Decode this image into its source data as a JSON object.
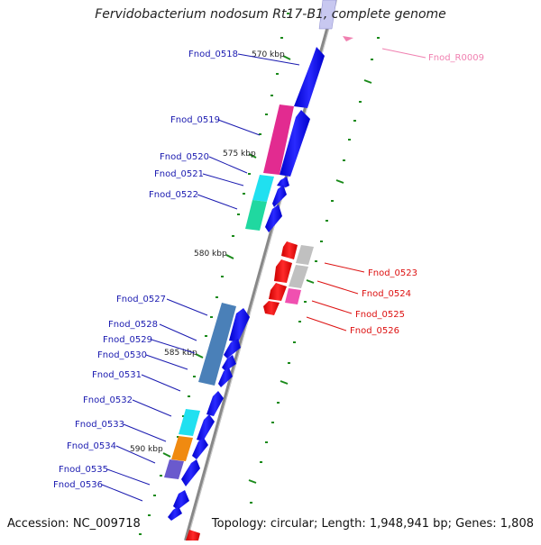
{
  "title": "Fervidobacterium nodosum Rt17-B1, complete genome",
  "footer": {
    "accession": "Accession: NC_009718",
    "summary": "Topology: circular; Length: 1,948,941 bp; Genes: 1,808"
  },
  "scale_labels": [
    "570 kbp",
    "575 kbp",
    "580 kbp",
    "585 kbp",
    "590 kbp"
  ],
  "left_genes": [
    "Fnod_0518",
    "Fnod_0519",
    "Fnod_0520",
    "Fnod_0521",
    "Fnod_0522",
    "Fnod_0527",
    "Fnod_0528",
    "Fnod_0529",
    "Fnod_0530",
    "Fnod_0531",
    "Fnod_0532",
    "Fnod_0533",
    "Fnod_0534",
    "Fnod_0535",
    "Fnod_0536"
  ],
  "right_genes": [
    "Fnod_0523",
    "Fnod_0524",
    "Fnod_0525",
    "Fnod_0526"
  ],
  "rna_gene": "Fnod_R0009",
  "colors": {
    "forward_gene": "#0000ee",
    "reverse_gene": "#ee0000",
    "label_blue": "#1a1ab0",
    "label_red": "#dd1111",
    "label_pink": "#f080b0",
    "backbone": "#888888",
    "tick": "#1a8a1a",
    "magenta": "#e0208a",
    "cyan": "#20e0f0",
    "teal_green": "#20d8a0",
    "steel_blue": "#4a80b8",
    "orange": "#f08a10",
    "slate_purple": "#6a5acd",
    "pink": "#f050b0",
    "gray": "#c0c0c0"
  }
}
